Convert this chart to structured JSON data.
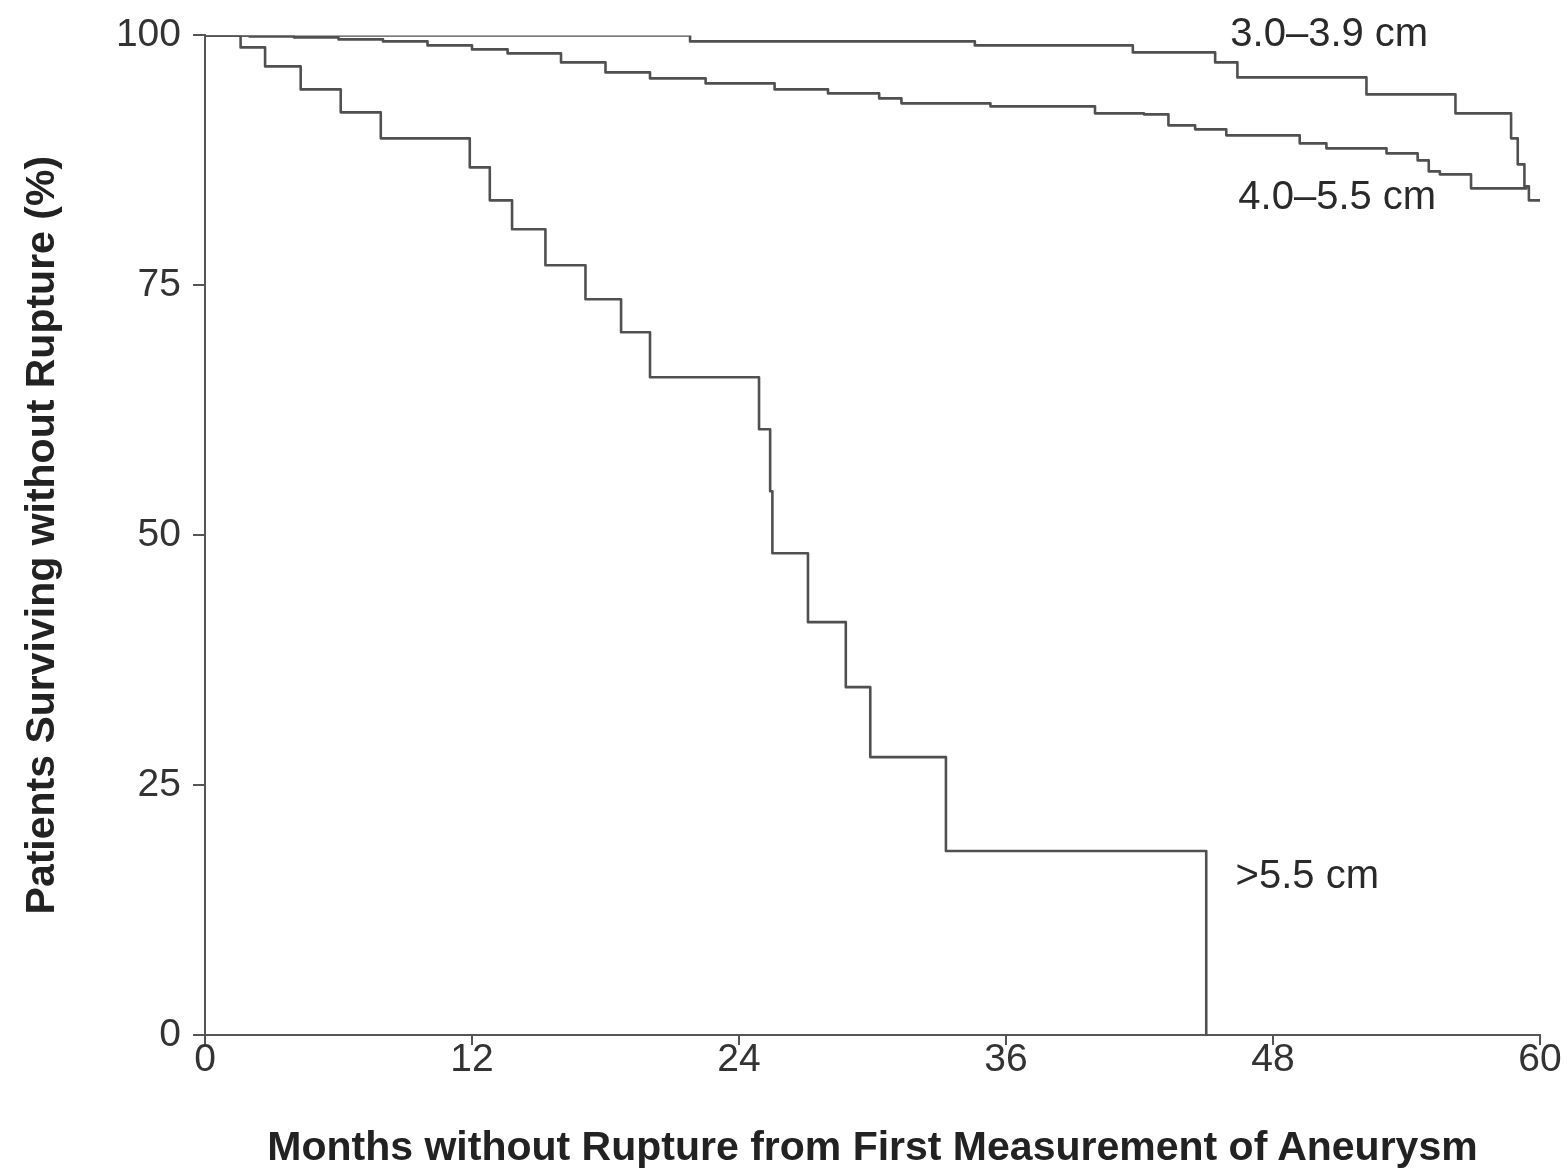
{
  "chart_data": {
    "type": "step",
    "xlabel": "Months without Rupture from First Measurement of Aneurysm",
    "ylabel": "Patients Surviving without Rupture (%)",
    "xlim": [
      0,
      60
    ],
    "xticks": [
      0,
      12,
      24,
      36,
      48,
      60
    ],
    "ylim": [
      0,
      100
    ],
    "yticks": [
      0,
      25,
      50,
      75,
      100
    ],
    "series": [
      {
        "name": "3.0–3.9 cm",
        "color": "#505050",
        "x": [
          0,
          21.8,
          34.6,
          41.7,
          45.4,
          46.4,
          52.2,
          56.2,
          58.7,
          59.0,
          59.3,
          59.5,
          60
        ],
        "values": [
          100,
          99.4,
          99.0,
          98.3,
          97.3,
          95.8,
          94.1,
          92.2,
          89.7,
          87.1,
          84.9,
          83.5,
          83.5
        ]
      },
      {
        "name": "4.0–5.5 cm",
        "color": "#505050",
        "x": [
          0,
          2,
          4,
          6,
          8,
          10,
          12,
          13.6,
          16,
          18,
          20,
          22.5,
          25.6,
          28,
          30.3,
          31.3,
          35.3,
          40.0,
          42.2,
          43.3,
          44.5,
          45.9,
          49.2,
          50.4,
          53.1,
          54.5,
          55.0,
          55.5,
          56.9,
          59.4
        ],
        "values": [
          100,
          99.9,
          99.8,
          99.6,
          99.4,
          99.0,
          98.6,
          98.2,
          97.3,
          96.3,
          95.7,
          95.2,
          94.6,
          94.2,
          93.7,
          93.2,
          92.9,
          92.2,
          92.1,
          91.0,
          90.6,
          90.0,
          89.2,
          88.7,
          88.2,
          87.5,
          86.4,
          86.1,
          84.7,
          84.7
        ]
      },
      {
        "name": ">5.5 cm",
        "color": "#505050",
        "x": [
          0,
          1.6,
          2.7,
          4.3,
          6.1,
          7.9,
          11.9,
          12.8,
          13.8,
          15.3,
          17.1,
          18.7,
          20.0,
          24.9,
          25.4,
          25.5,
          27.1,
          28.8,
          29.9,
          33.3,
          45.0
        ],
        "values": [
          100,
          98.8,
          96.9,
          94.6,
          92.3,
          89.7,
          86.8,
          83.5,
          80.6,
          77.0,
          73.6,
          70.3,
          65.8,
          60.6,
          54.4,
          48.2,
          41.3,
          34.8,
          27.8,
          18.4,
          0
        ]
      }
    ]
  }
}
